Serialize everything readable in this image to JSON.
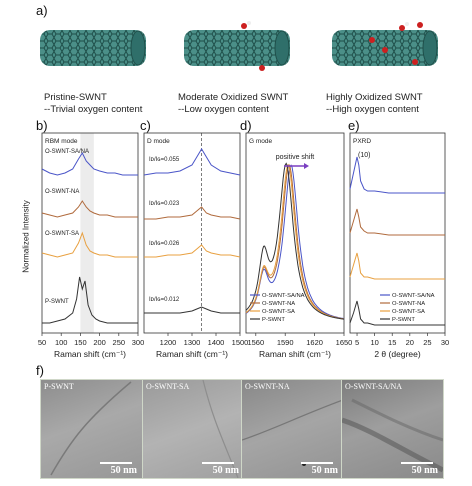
{
  "panel_letters": {
    "a": "a)",
    "b": "b)",
    "c": "c)",
    "d": "d)",
    "e": "e)",
    "f": "f)"
  },
  "schematics": [
    {
      "title": "Pristine-SWNT",
      "desc": "--Trivial oxygen content"
    },
    {
      "title": "Moderate Oxidized SWNT",
      "desc": "--Low  oxygen content"
    },
    {
      "title": "Highly Oxidized SWNT",
      "desc": "--High  oxygen content"
    }
  ],
  "colors": {
    "SAINA": "#4a55c8",
    "NA": "#b06a3c",
    "SA": "#e8a040",
    "P": "#333333",
    "tube": "#2f6f6a",
    "oxygen": "#cc2020"
  },
  "ylabel_shared": "Normalized Intensity",
  "chart_data": [
    {
      "panel": "b",
      "type": "line",
      "mode_label": "RBM mode",
      "xlabel": "Raman shift (cm⁻¹)",
      "xlim": [
        50,
        300
      ],
      "xticks": [
        "50",
        "100",
        "150",
        "200",
        "250",
        "300"
      ],
      "highlight_band": [
        150,
        185
      ],
      "series": [
        {
          "name": "O-SWNT-SA/NA",
          "color_key": "SAINA",
          "x": [
            50,
            70,
            90,
            110,
            130,
            145,
            155,
            165,
            175,
            185,
            200,
            220,
            240,
            260,
            280,
            300
          ],
          "y": [
            0.82,
            0.8,
            0.79,
            0.8,
            0.82,
            0.87,
            0.9,
            0.86,
            0.84,
            0.82,
            0.81,
            0.8,
            0.8,
            0.79,
            0.79,
            0.79
          ]
        },
        {
          "name": "O-SWNT-NA",
          "color_key": "NA",
          "x": [
            50,
            70,
            90,
            110,
            130,
            145,
            155,
            165,
            175,
            185,
            200,
            220,
            240,
            260,
            280,
            300
          ],
          "y": [
            0.6,
            0.59,
            0.58,
            0.59,
            0.6,
            0.63,
            0.66,
            0.63,
            0.61,
            0.6,
            0.59,
            0.59,
            0.58,
            0.58,
            0.58,
            0.58
          ]
        },
        {
          "name": "O-SWNT-SA",
          "color_key": "SA",
          "x": [
            50,
            70,
            90,
            110,
            130,
            145,
            155,
            165,
            175,
            185,
            200,
            220,
            240,
            260,
            280,
            300
          ],
          "y": [
            0.4,
            0.39,
            0.38,
            0.39,
            0.4,
            0.45,
            0.5,
            0.44,
            0.41,
            0.4,
            0.39,
            0.39,
            0.38,
            0.38,
            0.38,
            0.38
          ]
        },
        {
          "name": "P-SWNT",
          "color_key": "P",
          "x": [
            50,
            70,
            90,
            110,
            130,
            140,
            148,
            155,
            162,
            170,
            180,
            190,
            200,
            220,
            240,
            260,
            280,
            300
          ],
          "y": [
            0.05,
            0.05,
            0.06,
            0.07,
            0.1,
            0.17,
            0.28,
            0.22,
            0.26,
            0.14,
            0.09,
            0.07,
            0.06,
            0.05,
            0.05,
            0.05,
            0.05,
            0.05
          ]
        }
      ],
      "labels": [
        "O-SWNT-SA/NA",
        "O-SWNT-NA",
        "O-SWNT-SA",
        "P-SWNT"
      ]
    },
    {
      "panel": "c",
      "type": "line",
      "mode_label": "D mode",
      "xlabel": "Raman shift (cm⁻¹)",
      "xlim": [
        1100,
        1500
      ],
      "xticks": [
        "1200",
        "1300",
        "1400",
        "1500"
      ],
      "peak_marker": 1340,
      "ratios": [
        "Iᴅ/Iɢ=0.055",
        "Iᴅ/Iɢ=0.023",
        "Iᴅ/Iɢ=0.026",
        "Iᴅ/Iɢ=0.012"
      ],
      "series": [
        {
          "name": "O-SWNT-SA/NA",
          "color_key": "SAINA",
          "x": [
            1100,
            1150,
            1200,
            1250,
            1300,
            1320,
            1340,
            1360,
            1380,
            1420,
            1460,
            1500
          ],
          "y": [
            0.79,
            0.8,
            0.8,
            0.81,
            0.84,
            0.88,
            0.92,
            0.88,
            0.84,
            0.81,
            0.8,
            0.79
          ]
        },
        {
          "name": "O-SWNT-NA",
          "color_key": "NA",
          "x": [
            1100,
            1150,
            1200,
            1250,
            1300,
            1320,
            1340,
            1360,
            1380,
            1420,
            1460,
            1500
          ],
          "y": [
            0.57,
            0.57,
            0.58,
            0.58,
            0.59,
            0.61,
            0.63,
            0.6,
            0.59,
            0.58,
            0.58,
            0.57
          ]
        },
        {
          "name": "O-SWNT-SA",
          "color_key": "SA",
          "x": [
            1100,
            1150,
            1200,
            1250,
            1300,
            1320,
            1340,
            1360,
            1380,
            1420,
            1460,
            1500
          ],
          "y": [
            0.38,
            0.38,
            0.39,
            0.39,
            0.4,
            0.42,
            0.44,
            0.41,
            0.4,
            0.39,
            0.39,
            0.38
          ]
        },
        {
          "name": "P-SWNT",
          "color_key": "P",
          "x": [
            1100,
            1150,
            1200,
            1250,
            1300,
            1320,
            1340,
            1360,
            1380,
            1420,
            1460,
            1500
          ],
          "y": [
            0.1,
            0.1,
            0.1,
            0.1,
            0.11,
            0.12,
            0.13,
            0.12,
            0.11,
            0.1,
            0.1,
            0.1
          ]
        }
      ]
    },
    {
      "panel": "d",
      "type": "line",
      "mode_label": "G mode",
      "annotation": "positive shift",
      "xlabel": "Raman shift (cm⁻¹)",
      "xlim": [
        1550,
        1650
      ],
      "xticks": [
        "1560",
        "1590",
        "1620",
        "1650"
      ],
      "legend": [
        "O-SWNT-SA/NA",
        "O-SWNT-NA",
        "O-SWNT-SA",
        "P-SWNT"
      ],
      "series": [
        {
          "name": "O-SWNT-SA/NA",
          "color_key": "SAINA",
          "center": 1596
        },
        {
          "name": "O-SWNT-NA",
          "color_key": "NA",
          "center": 1594
        },
        {
          "name": "O-SWNT-SA",
          "color_key": "SA",
          "center": 1593
        },
        {
          "name": "P-SWNT",
          "color_key": "P",
          "center": 1591
        }
      ]
    },
    {
      "panel": "e",
      "type": "line",
      "mode_label": "PXRD",
      "peak_label": "(10)",
      "xlabel": "2 θ (degree)",
      "xlim": [
        3,
        30
      ],
      "xticks": [
        "5",
        "10",
        "15",
        "20",
        "25",
        "30"
      ],
      "legend": [
        "O-SWNT-SA/NA",
        "O-SWNT-NA",
        "O-SWNT-SA",
        "P-SWNT"
      ],
      "series": [
        {
          "name": "O-SWNT-SA/NA",
          "color_key": "SAINA",
          "x": [
            3,
            4,
            5,
            5.5,
            6,
            7,
            8,
            10,
            14,
            18,
            22,
            26,
            30
          ],
          "y": [
            0.72,
            0.8,
            0.88,
            0.84,
            0.76,
            0.72,
            0.71,
            0.71,
            0.7,
            0.7,
            0.7,
            0.7,
            0.7
          ]
        },
        {
          "name": "O-SWNT-NA",
          "color_key": "NA",
          "x": [
            3,
            4,
            5,
            5.5,
            6,
            7,
            8,
            10,
            14,
            18,
            22,
            26,
            30
          ],
          "y": [
            0.5,
            0.56,
            0.62,
            0.58,
            0.53,
            0.51,
            0.5,
            0.5,
            0.49,
            0.49,
            0.49,
            0.49,
            0.49
          ]
        },
        {
          "name": "O-SWNT-SA",
          "color_key": "SA",
          "x": [
            3,
            4,
            5,
            5.5,
            6,
            7,
            8,
            10,
            14,
            18,
            22,
            26,
            30
          ],
          "y": [
            0.28,
            0.34,
            0.4,
            0.36,
            0.3,
            0.28,
            0.28,
            0.27,
            0.27,
            0.27,
            0.27,
            0.27,
            0.27
          ]
        },
        {
          "name": "P-SWNT",
          "color_key": "P",
          "x": [
            3,
            4,
            5,
            5.5,
            6,
            7,
            8,
            10,
            14,
            18,
            22,
            26,
            30
          ],
          "y": [
            0.05,
            0.1,
            0.16,
            0.12,
            0.07,
            0.05,
            0.05,
            0.04,
            0.04,
            0.04,
            0.04,
            0.04,
            0.04
          ]
        }
      ]
    }
  ],
  "tem_images": [
    {
      "label": "P-SWNT",
      "scale": "50 nm"
    },
    {
      "label": "O-SWNT-SA",
      "scale": "50 nm"
    },
    {
      "label": "O-SWNT-NA",
      "scale": "50 nm"
    },
    {
      "label": "O-SWNT-SA/NA",
      "scale": "50 nm"
    }
  ]
}
